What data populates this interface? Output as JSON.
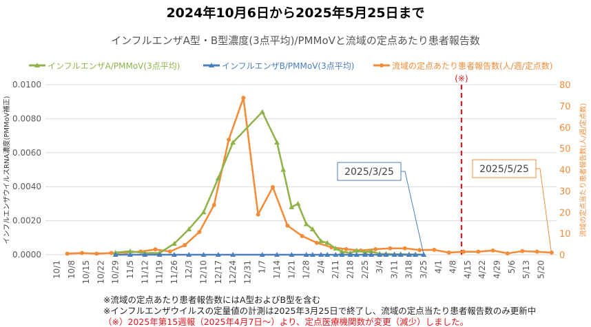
{
  "chart_data": {
    "type": "line",
    "title": "2024年10月6日から2025年5月25日まで",
    "subtitle": "インフルエンザA型・B型濃度(3点平均)/PMMoVと流域の定点あたり患者報告数",
    "ylabel_left": "インフルエンザウイルスRNA濃度(PMMoV補正)",
    "ylabel_right": "流域の定点当たり患者報告数(人/週/定点数)",
    "ylim_left": [
      0,
      0.01
    ],
    "ylim_right": [
      0,
      80
    ],
    "yticks_left": [
      "0.0000",
      "0.0020",
      "0.0040",
      "0.0060",
      "0.0080",
      "0.0100"
    ],
    "yticks_right": [
      "0",
      "10",
      "20",
      "30",
      "40",
      "50",
      "60",
      "70",
      "80"
    ],
    "xticks": [
      "10/1",
      "10/8",
      "10/15",
      "10/22",
      "10/29",
      "11/5",
      "11/12",
      "11/19",
      "11/26",
      "12/3",
      "12/10",
      "12/17",
      "12/24",
      "12/31",
      "1/7",
      "1/14",
      "1/21",
      "1/28",
      "2/4",
      "2/11",
      "2/18",
      "2/25",
      "3/4",
      "3/11",
      "3/18",
      "3/25",
      "4/1",
      "4/8",
      "4/15",
      "4/22",
      "4/29",
      "5/6",
      "5/13",
      "5/20"
    ],
    "grid": true,
    "legend_placement": "top",
    "series": [
      {
        "name": "インフルエンザA/PMMoV(3点平均)",
        "axis": "left",
        "color": "#8fb34a",
        "marker": "triangle",
        "x": [
          "2024-10-29",
          "2024-11-05",
          "2024-11-12",
          "2024-11-19",
          "2024-11-26",
          "2024-12-03",
          "2024-12-10",
          "2024-12-17",
          "2024-12-24",
          "2025-01-07",
          "2025-01-14",
          "2025-01-17",
          "2025-01-21",
          "2025-01-24",
          "2025-01-28",
          "2025-01-31",
          "2025-02-04",
          "2025-02-07",
          "2025-02-11",
          "2025-02-14",
          "2025-02-18",
          "2025-02-21",
          "2025-02-25",
          "2025-02-28",
          "2025-03-04",
          "2025-03-07",
          "2025-03-11",
          "2025-03-14",
          "2025-03-18",
          "2025-03-21",
          "2025-03-25"
        ],
        "y": [
          0.00013,
          0.0002,
          0.0001,
          0.0001,
          0.00065,
          0.0015,
          0.0025,
          0.0045,
          0.0066,
          0.0084,
          0.0066,
          0.005,
          0.0028,
          0.003,
          0.0018,
          0.0015,
          0.0008,
          0.0007,
          0.00037,
          0.00018,
          0.0001,
          0.00025,
          0.00015,
          0.0002,
          5e-05,
          5e-05,
          3e-05,
          3e-05,
          2e-05,
          2e-05,
          0.0
        ]
      },
      {
        "name": "インフルエンザB/PMMoV(3点平均)",
        "axis": "left",
        "color": "#4a7ebf",
        "marker": "triangle",
        "x": [
          "2024-10-29",
          "2024-11-05",
          "2024-11-12",
          "2024-11-19",
          "2024-11-26",
          "2024-12-03",
          "2024-12-10",
          "2024-12-17",
          "2024-12-24",
          "2025-01-07",
          "2025-01-14",
          "2025-01-21",
          "2025-01-28",
          "2025-01-31",
          "2025-02-04",
          "2025-02-07",
          "2025-02-11",
          "2025-02-14",
          "2025-02-18",
          "2025-02-21",
          "2025-02-25",
          "2025-02-28",
          "2025-03-04",
          "2025-03-07",
          "2025-03-11",
          "2025-03-14",
          "2025-03-18",
          "2025-03-21",
          "2025-03-25"
        ],
        "y": [
          0,
          0,
          0,
          0,
          0,
          0,
          0,
          0,
          0,
          0,
          0,
          0,
          0,
          0,
          0,
          0,
          0,
          0,
          0,
          0,
          0,
          0,
          0,
          0,
          0,
          0,
          0,
          0,
          0
        ]
      },
      {
        "name": "流域の定点あたり患者報告数(人/週/定点数)",
        "axis": "right",
        "color": "#f28c38",
        "marker": "circle",
        "x": [
          "2024-10-06",
          "2024-10-13",
          "2024-10-20",
          "2024-10-27",
          "2024-11-03",
          "2024-11-10",
          "2024-11-17",
          "2024-11-24",
          "2024-12-01",
          "2024-12-08",
          "2024-12-15",
          "2024-12-22",
          "2024-12-29",
          "2025-01-05",
          "2025-01-12",
          "2025-01-19",
          "2025-01-26",
          "2025-02-02",
          "2025-02-09",
          "2025-02-16",
          "2025-02-23",
          "2025-03-02",
          "2025-03-09",
          "2025-03-16",
          "2025-03-23",
          "2025-03-30",
          "2025-04-06",
          "2025-04-13",
          "2025-04-20",
          "2025-04-27",
          "2025-05-04",
          "2025-05-11",
          "2025-05-18",
          "2025-05-25"
        ],
        "y": [
          0.5,
          0.8,
          0.5,
          0.8,
          1.0,
          1.5,
          2.5,
          1.5,
          4.5,
          10.7,
          23.4,
          54.1,
          73.8,
          18.9,
          31.8,
          13.7,
          8.8,
          5.6,
          3.5,
          2.6,
          2.0,
          2.6,
          3.0,
          3.0,
          2.2,
          2.3,
          1.0,
          1.4,
          1.4,
          2.0,
          0.6,
          1.7,
          1.4,
          1.0
        ]
      }
    ],
    "annotations": [
      {
        "text": "2025/3/25",
        "date": "2025-03-25",
        "color": "#4a7ebf"
      },
      {
        "text": "2025/5/25",
        "date": "2025-05-25",
        "color": "#f28c38"
      },
      {
        "text": "(※)",
        "date": "2025-04-12",
        "type": "vertical-dashed-line",
        "color": "#e8141b"
      }
    ]
  },
  "notes": [
    "※流域の定点あたり患者報告数にはA型およびB型を含む",
    "※インフルエンザウイルスの定量値の計測は2025年3月25日で終了し、流域の定点当たり患者報告数のみ更新中",
    "（※）2025年第15週報（2025年4月7日～）より、定点医療機関数が変更（減少）しました。"
  ]
}
